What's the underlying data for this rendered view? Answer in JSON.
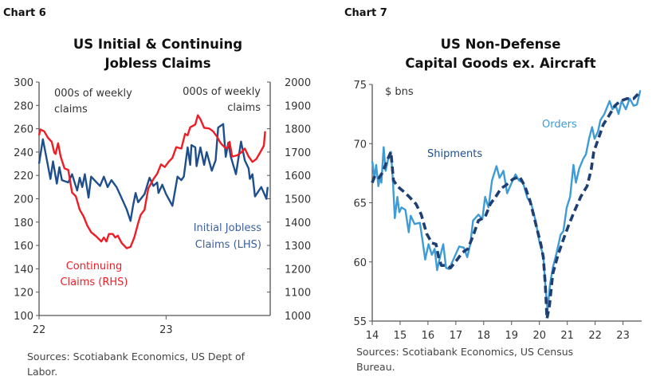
{
  "chart_data": [
    {
      "type": "line",
      "chart_label": "Chart 6",
      "title": [
        "US Initial & Continuing",
        "Jobless Claims"
      ],
      "x_ticks": [
        {
          "x": 22,
          "label": "22"
        },
        {
          "x": 23,
          "label": "23"
        }
      ],
      "xlim": [
        22,
        23.82
      ],
      "y_left": {
        "lim": [
          100,
          300
        ],
        "ticks": [
          100,
          120,
          140,
          160,
          180,
          200,
          220,
          240,
          260,
          280,
          300
        ],
        "unit_label": [
          "000s of weekly",
          "claims"
        ]
      },
      "y_right": {
        "lim": [
          1000,
          2000
        ],
        "ticks": [
          1000,
          1100,
          1200,
          1300,
          1400,
          1500,
          1600,
          1700,
          1800,
          1900,
          2000
        ],
        "unit_label": [
          "000s of weekly",
          "claims"
        ]
      },
      "grid": false,
      "series": [
        {
          "name": "Initial Jobless Claims (LHS)",
          "label_lines": [
            "Initial Jobless",
            "Claims (LHS)"
          ],
          "axis": "left",
          "color": "#1f4e8c",
          "style": "solid",
          "x": [
            22.0,
            22.03,
            22.06,
            22.09,
            22.11,
            22.14,
            22.16,
            22.18,
            22.23,
            22.26,
            22.3,
            22.32,
            22.34,
            22.36,
            22.39,
            22.41,
            22.48,
            22.51,
            22.54,
            22.57,
            22.61,
            22.64,
            22.69,
            22.72,
            22.74,
            22.76,
            22.78,
            22.83,
            22.87,
            22.9,
            22.93,
            22.94,
            22.97,
            23.0,
            23.05,
            23.09,
            23.12,
            23.14,
            23.17,
            23.19,
            23.2,
            23.23,
            23.24,
            23.27,
            23.3,
            23.32,
            23.36,
            23.39,
            23.41,
            23.45,
            23.47,
            23.49,
            23.51,
            23.55,
            23.59,
            23.62,
            23.65,
            23.66,
            23.68,
            23.7,
            23.75,
            23.79,
            23.8
          ],
          "y": [
            230,
            251,
            234,
            217,
            232,
            213,
            227,
            216,
            214,
            221,
            207,
            218,
            210,
            221,
            201,
            219,
            211,
            219,
            210,
            216,
            210,
            203,
            191,
            181,
            194,
            205,
            197,
            204,
            218,
            211,
            214,
            205,
            212,
            204,
            194,
            219,
            216,
            219,
            244,
            229,
            246,
            244,
            228,
            244,
            229,
            240,
            224,
            233,
            261,
            264,
            236,
            248,
            236,
            221,
            249,
            233,
            226,
            217,
            221,
            202,
            210,
            200,
            210
          ]
        },
        {
          "name": "Continuing Claims (RHS)",
          "label_lines": [
            "Continuing",
            "Claims (RHS)"
          ],
          "axis": "right",
          "color": "#ee1c25",
          "style": "solid",
          "x": [
            22.0,
            22.01,
            22.04,
            22.07,
            22.1,
            22.12,
            22.13,
            22.15,
            22.17,
            22.2,
            22.23,
            22.26,
            22.29,
            22.32,
            22.35,
            22.38,
            22.41,
            22.45,
            22.49,
            22.51,
            22.53,
            22.55,
            22.58,
            22.6,
            22.62,
            22.65,
            22.69,
            22.72,
            22.75,
            22.78,
            22.8,
            22.83,
            22.86,
            22.9,
            22.93,
            22.96,
            22.99,
            23.02,
            23.05,
            23.08,
            23.12,
            23.15,
            23.17,
            23.19,
            23.23,
            23.25,
            23.27,
            23.3,
            23.34,
            23.37,
            23.4,
            23.43,
            23.46,
            23.48,
            23.5,
            23.52,
            23.56,
            23.59,
            23.62,
            23.65,
            23.68,
            23.71,
            23.74,
            23.77,
            23.78
          ],
          "y": [
            1772,
            1797,
            1789,
            1761,
            1744,
            1698,
            1692,
            1738,
            1681,
            1630,
            1624,
            1527,
            1510,
            1453,
            1425,
            1385,
            1357,
            1339,
            1317,
            1334,
            1317,
            1349,
            1349,
            1334,
            1342,
            1311,
            1288,
            1294,
            1334,
            1396,
            1431,
            1453,
            1544,
            1584,
            1607,
            1647,
            1636,
            1658,
            1675,
            1721,
            1715,
            1778,
            1772,
            1806,
            1818,
            1858,
            1841,
            1804,
            1801,
            1789,
            1767,
            1738,
            1721,
            1715,
            1744,
            1681,
            1686,
            1698,
            1715,
            1681,
            1658,
            1670,
            1698,
            1727,
            1789
          ]
        }
      ],
      "source": [
        "Sources: Scotiabank Economics, US Dept of",
        "Labor."
      ]
    },
    {
      "type": "line",
      "chart_label": "Chart 7",
      "title": [
        "US Non-Defense",
        "Capital Goods ex. Aircraft"
      ],
      "x_ticks": [
        {
          "x": 14,
          "label": "14"
        },
        {
          "x": 15,
          "label": "15"
        },
        {
          "x": 16,
          "label": "16"
        },
        {
          "x": 17,
          "label": "17"
        },
        {
          "x": 18,
          "label": "18"
        },
        {
          "x": 19,
          "label": "19"
        },
        {
          "x": 20,
          "label": "20"
        },
        {
          "x": 21,
          "label": "21"
        },
        {
          "x": 22,
          "label": "22"
        },
        {
          "x": 23,
          "label": "23"
        }
      ],
      "xlim": [
        14,
        23.67
      ],
      "y_left": {
        "lim": [
          55,
          75
        ],
        "ticks": [
          55,
          60,
          65,
          70,
          75
        ],
        "unit_label": [
          "$ bns"
        ]
      },
      "grid": false,
      "series": [
        {
          "name": "Orders",
          "label_lines": [
            "Orders"
          ],
          "axis": "left",
          "color": "#3d9bd6",
          "style": "solid",
          "x": [
            14.0,
            14.08,
            14.14,
            14.22,
            14.29,
            14.33,
            14.41,
            14.48,
            14.57,
            14.67,
            14.74,
            14.81,
            14.9,
            14.97,
            15.05,
            15.19,
            15.31,
            15.38,
            15.52,
            15.71,
            15.81,
            15.9,
            16.02,
            16.14,
            16.24,
            16.33,
            16.43,
            16.55,
            16.65,
            16.76,
            16.95,
            17.12,
            17.29,
            17.41,
            17.52,
            17.62,
            17.81,
            17.95,
            18.05,
            18.17,
            18.3,
            18.46,
            18.57,
            18.71,
            18.84,
            18.95,
            19.14,
            19.26,
            19.41,
            19.57,
            19.71,
            19.86,
            20.0,
            20.14,
            20.21,
            20.29,
            20.38,
            20.48,
            20.62,
            20.76,
            20.86,
            20.98,
            21.1,
            21.22,
            21.31,
            21.43,
            21.57,
            21.67,
            21.79,
            21.89,
            21.98,
            22.1,
            22.19,
            22.33,
            22.52,
            22.62,
            22.74,
            22.84,
            22.95,
            23.1,
            23.24,
            23.38,
            23.5,
            23.62
          ],
          "y": [
            68.5,
            67.1,
            68.2,
            66.4,
            67.3,
            66.7,
            69.7,
            67.7,
            68.7,
            69.3,
            66.9,
            63.7,
            65.5,
            64.2,
            64.6,
            64.4,
            62.5,
            63.9,
            63.2,
            63.3,
            61.7,
            60.2,
            61.5,
            60.6,
            61.1,
            59.3,
            60.4,
            61.5,
            59.5,
            59.4,
            60.4,
            61.3,
            61.2,
            60.4,
            61.5,
            63.5,
            64.0,
            63.6,
            65.5,
            64.6,
            66.9,
            68.1,
            67.1,
            67.7,
            65.8,
            66.4,
            67.4,
            66.9,
            66.7,
            65.4,
            64.9,
            63.5,
            61.7,
            60.5,
            58.1,
            55.9,
            58.1,
            59.5,
            60.8,
            62.3,
            62.6,
            64.6,
            65.5,
            68.2,
            66.7,
            67.9,
            68.7,
            69.1,
            70.5,
            71.4,
            70.4,
            71.0,
            72.0,
            72.5,
            73.6,
            72.9,
            73.2,
            72.5,
            73.6,
            72.9,
            73.8,
            73.2,
            73.3,
            74.5
          ]
        },
        {
          "name": "Shipments",
          "label_lines": [
            "Shipments"
          ],
          "axis": "left",
          "color": "#1f3f73",
          "style": "dashed",
          "x": [
            14.0,
            14.1,
            14.24,
            14.38,
            14.52,
            14.67,
            14.76,
            14.9,
            15.1,
            15.33,
            15.57,
            15.76,
            15.95,
            16.14,
            16.29,
            16.38,
            16.48,
            16.67,
            16.81,
            17.05,
            17.24,
            17.43,
            17.62,
            17.81,
            18.05,
            18.24,
            18.43,
            18.62,
            18.81,
            19.05,
            19.29,
            19.48,
            19.67,
            19.86,
            20.05,
            20.14,
            20.21,
            20.27,
            20.36,
            20.48,
            20.67,
            20.86,
            21.05,
            21.24,
            21.48,
            21.71,
            21.86,
            21.95,
            22.1,
            22.29,
            22.48,
            22.71,
            22.9,
            23.14,
            23.38,
            23.62
          ],
          "y": [
            66.7,
            67.3,
            67.1,
            67.6,
            68.5,
            69.3,
            66.9,
            66.4,
            66.0,
            65.5,
            64.9,
            64.0,
            62.4,
            61.6,
            61.5,
            60.4,
            59.7,
            59.7,
            59.5,
            60.2,
            60.8,
            61.1,
            62.2,
            63.5,
            63.8,
            64.9,
            65.5,
            66.2,
            66.5,
            67.0,
            67.2,
            66.4,
            65.1,
            63.3,
            61.5,
            60.4,
            58.1,
            55.2,
            56.3,
            59.0,
            60.6,
            61.9,
            63.1,
            64.2,
            65.5,
            66.4,
            67.8,
            69.3,
            70.3,
            71.6,
            72.3,
            73.2,
            73.6,
            73.8,
            73.8,
            74.4
          ]
        }
      ],
      "source": [
        "Sources: Scotiabank Economics, US Census",
        "Bureau."
      ]
    }
  ]
}
